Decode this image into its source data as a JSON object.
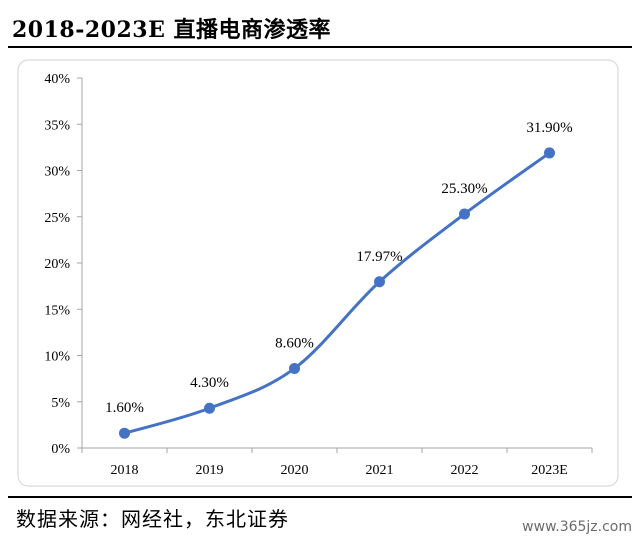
{
  "header": {
    "title": "2018-2023E 直播电商渗透率"
  },
  "footer": {
    "source": "数据来源：网经社，东北证券",
    "watermark": "www.365jz.com"
  },
  "colors": {
    "line": "#4472C4",
    "marker": "#4472C4",
    "frame": "#d9d9d9"
  },
  "chart_data": {
    "type": "line",
    "categories": [
      "2018",
      "2019",
      "2020",
      "2021",
      "2022",
      "2023E"
    ],
    "series": [
      {
        "values": [
          1.6,
          4.3,
          8.6,
          17.97,
          25.3,
          31.9
        ],
        "labels": [
          "1.60%",
          "4.30%",
          "8.60%",
          "17.97%",
          "25.30%",
          "31.90%"
        ]
      }
    ],
    "yticks": [
      "0%",
      "5%",
      "10%",
      "15%",
      "20%",
      "25%",
      "30%",
      "35%",
      "40%"
    ],
    "ylim": [
      0,
      40
    ],
    "grid": false,
    "smooth": true
  }
}
